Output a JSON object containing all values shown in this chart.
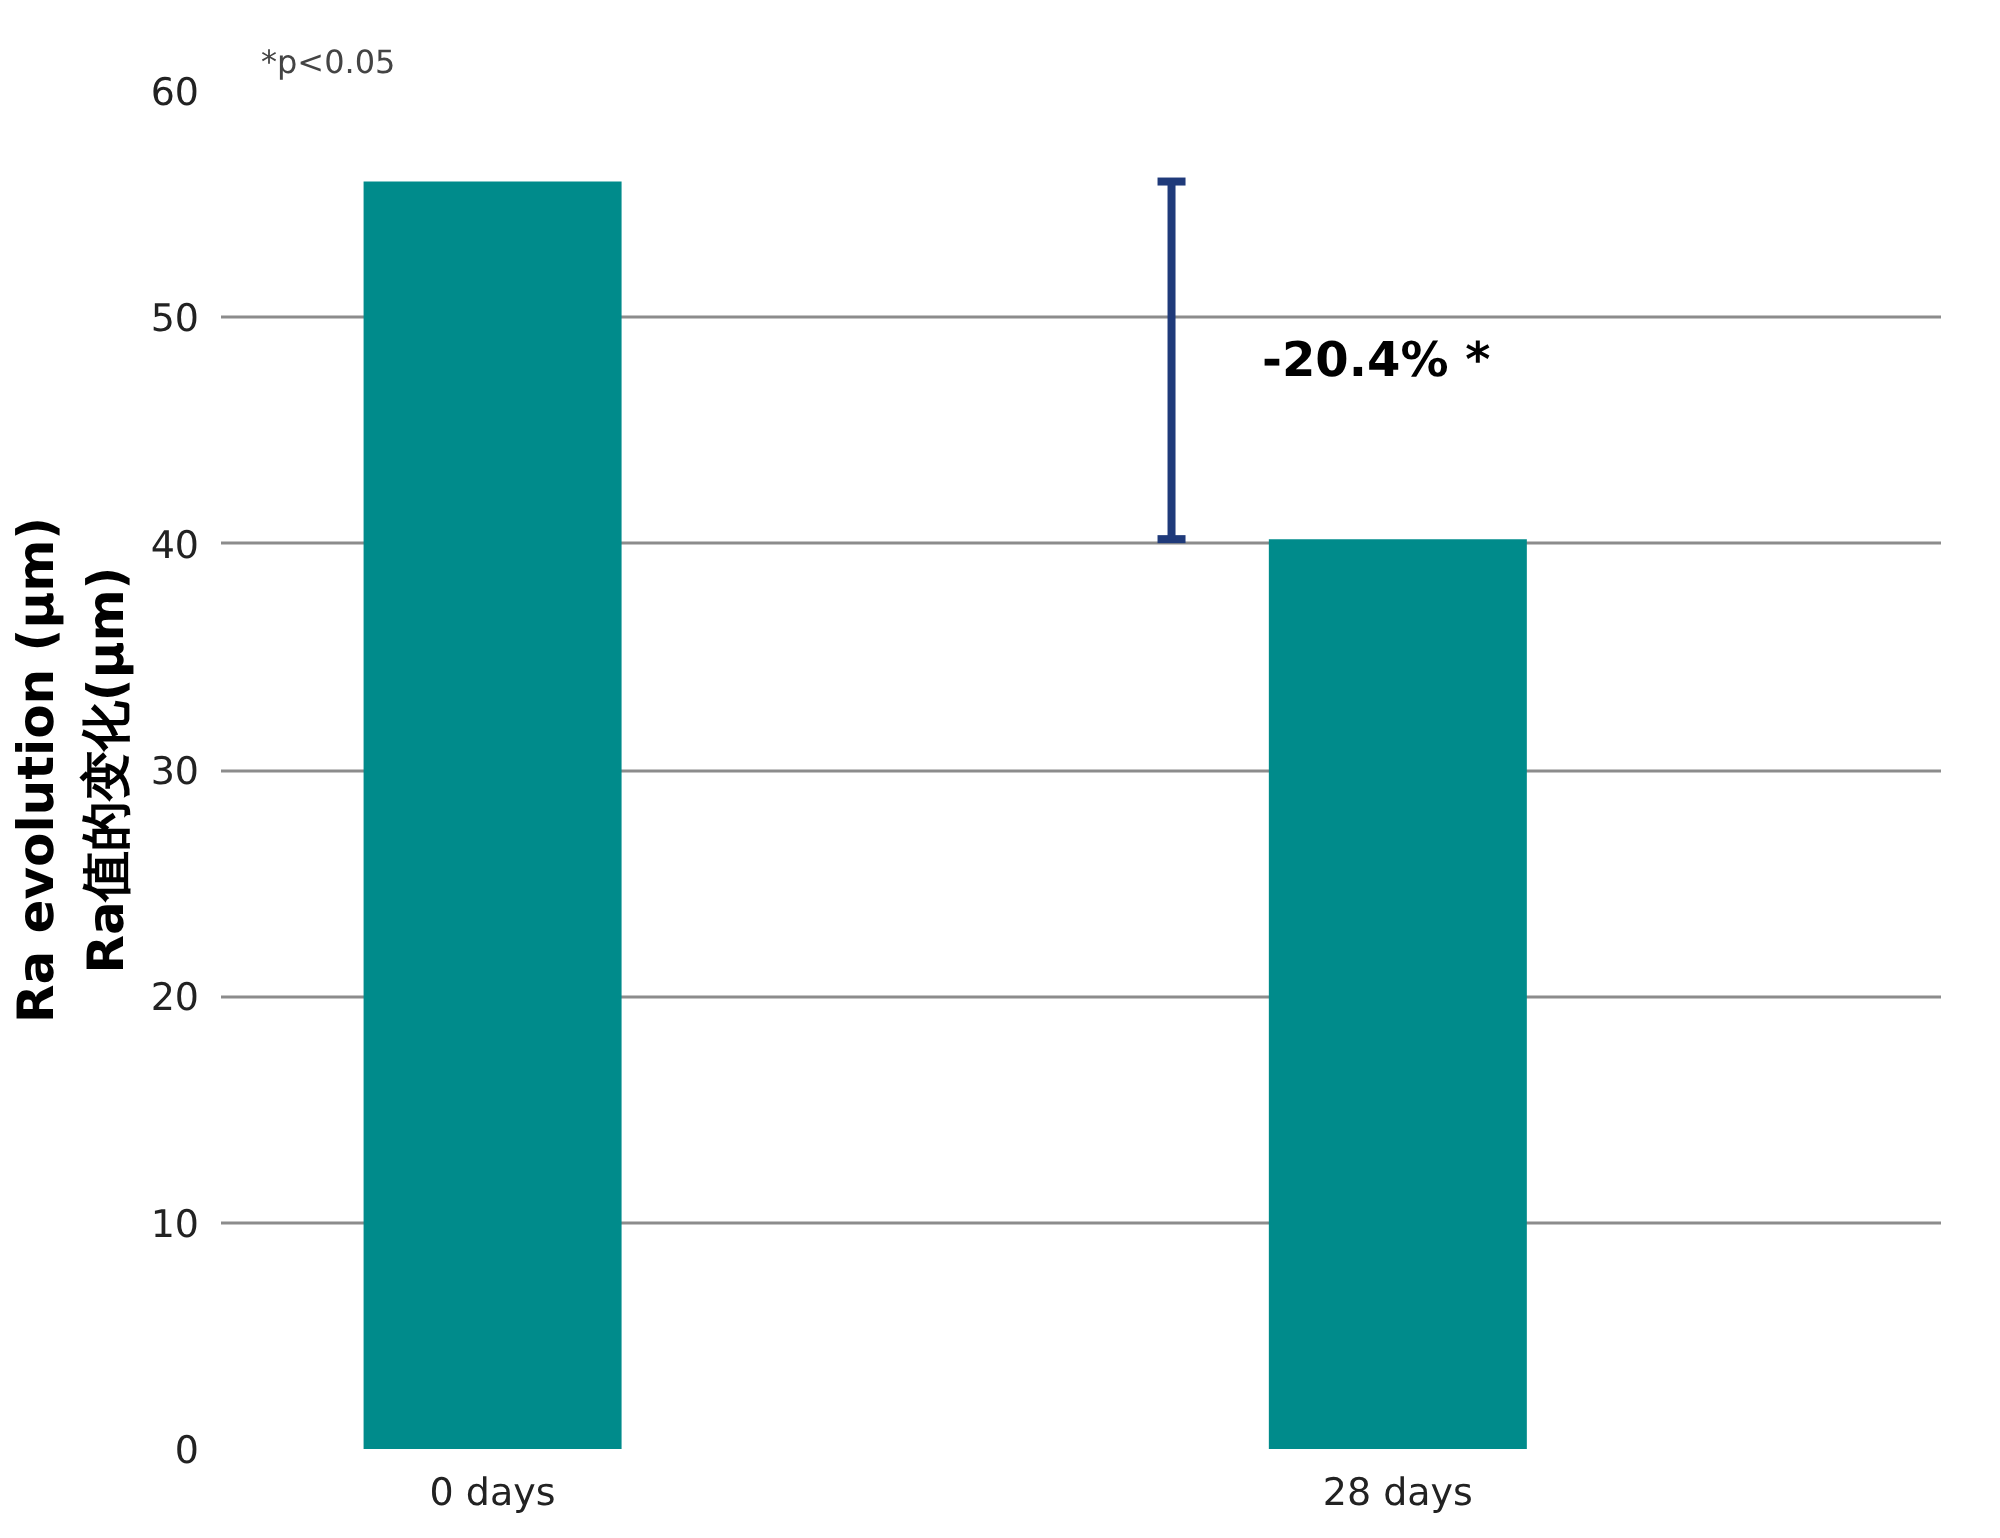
{
  "chart_data": {
    "type": "bar",
    "ylabel": "Ra evolution (µm)\nRa值的变化(µm)",
    "categories": [
      "0 days",
      "28 days"
    ],
    "values": [
      56,
      40.2
    ],
    "color": "#008b8b",
    "ylim": [
      0,
      60
    ],
    "yticks": [
      0,
      10,
      20,
      30,
      40,
      50,
      60
    ],
    "grid": "y",
    "annotations": [
      "*p<0.05",
      "-20.4% *"
    ]
  }
}
